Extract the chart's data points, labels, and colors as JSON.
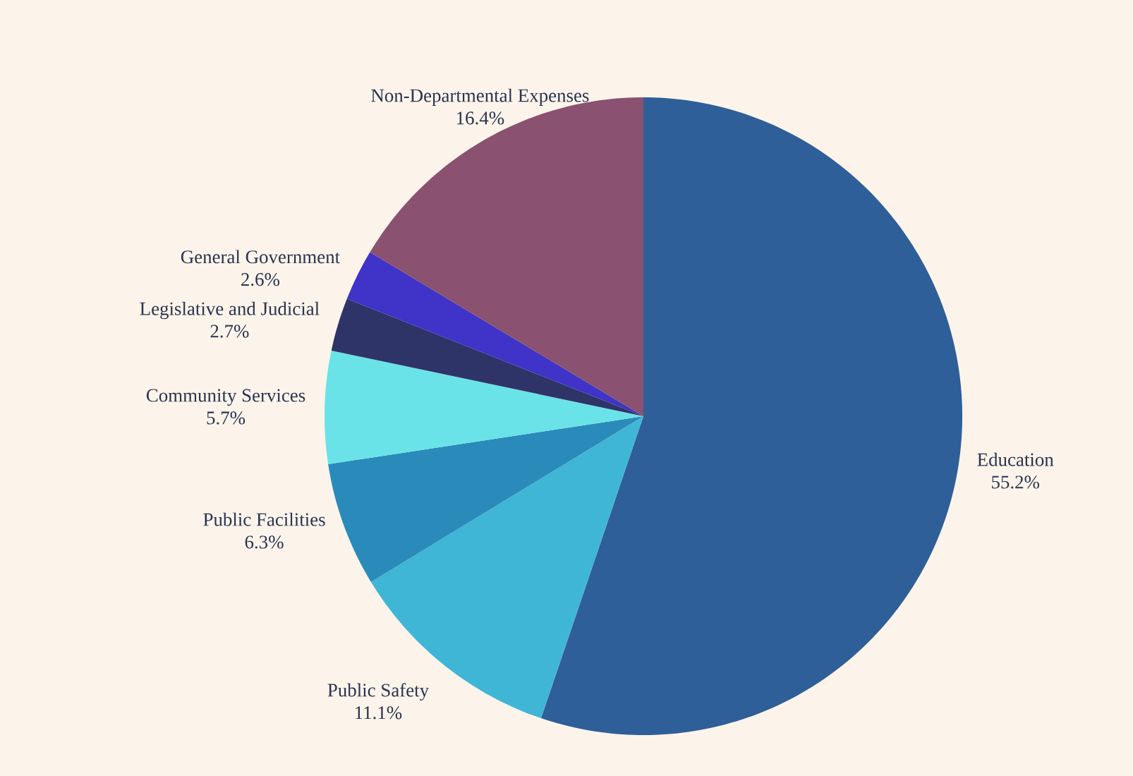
{
  "chart_data": {
    "type": "pie",
    "categories": [
      "Education",
      "Public Safety",
      "Public Facilities",
      "Community Services",
      "Legislative and Judicial",
      "General Government",
      "Non-Departmental Expenses"
    ],
    "values": [
      55.2,
      11.1,
      6.3,
      5.7,
      2.7,
      2.6,
      16.4
    ],
    "value_labels": [
      "55.2%",
      "11.1%",
      "6.3%",
      "5.7%",
      "2.7%",
      "2.6%",
      "16.4%"
    ],
    "colors": [
      "#2e5f98",
      "#40b6d6",
      "#2a8bba",
      "#6ae3e8",
      "#2e3468",
      "#3f33c8",
      "#8a5270"
    ]
  }
}
